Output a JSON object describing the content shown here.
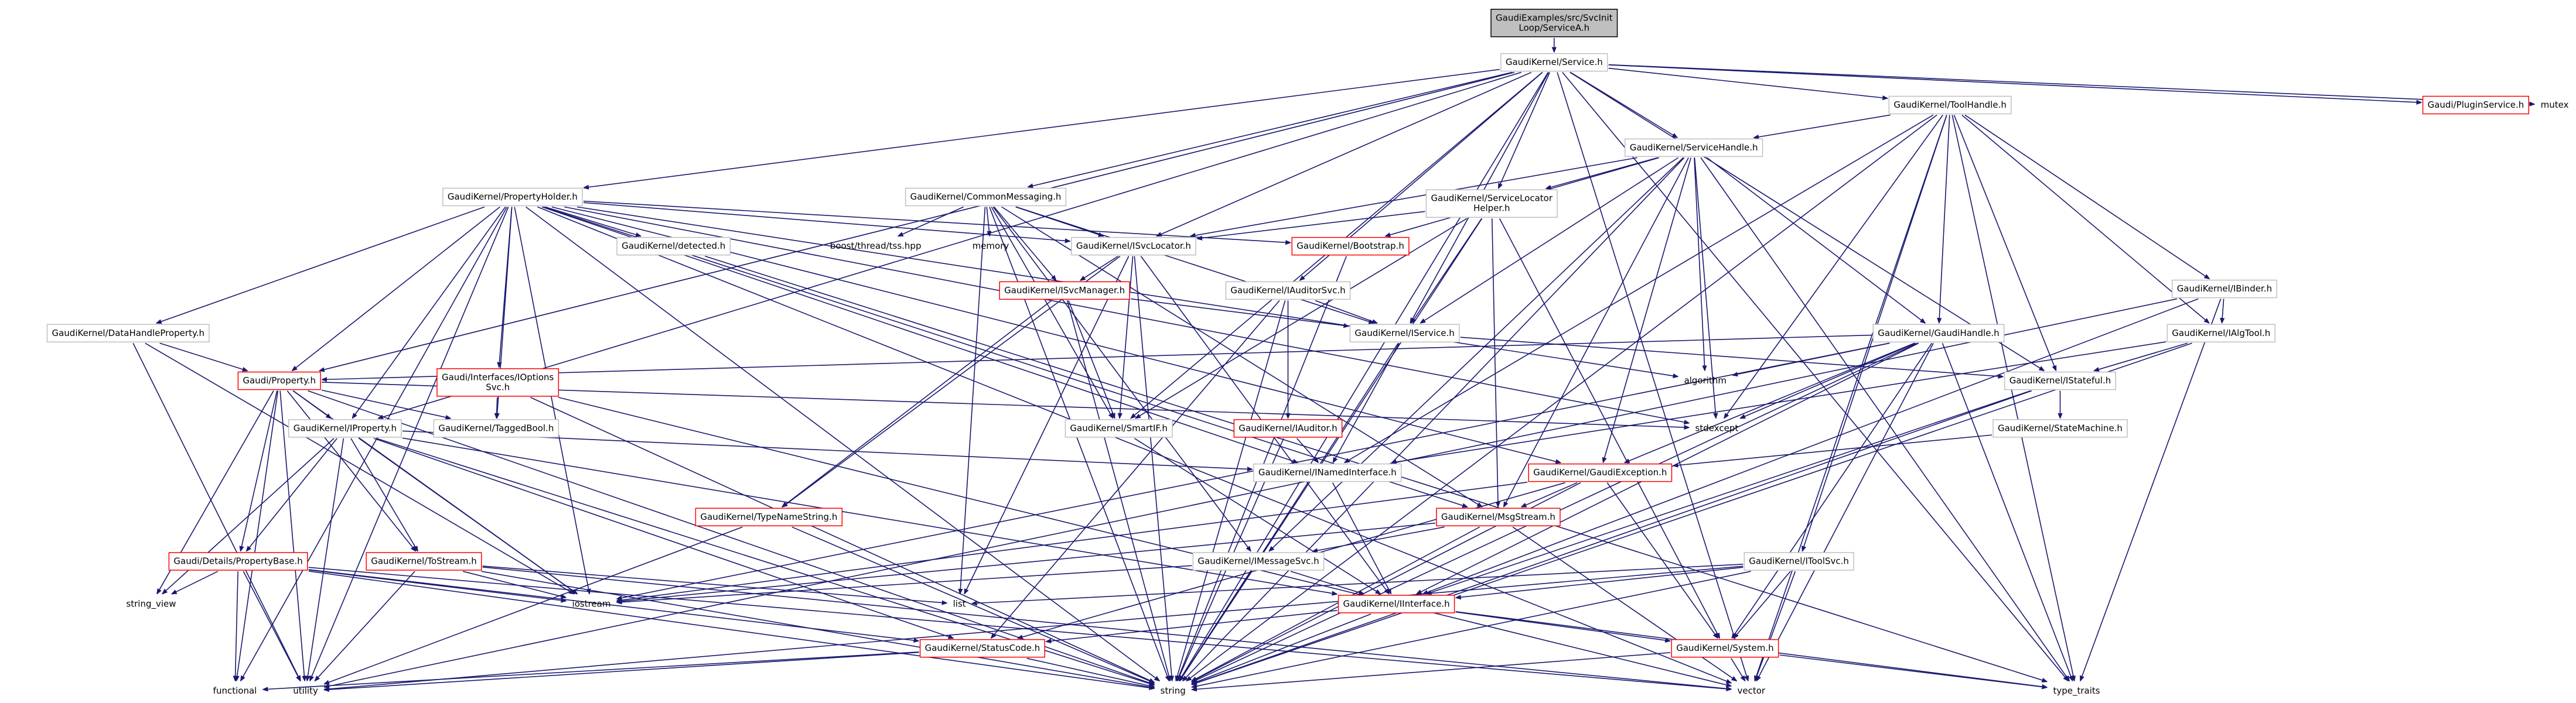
{
  "nodes": [
    {
      "lines": [
        "GaudiExamples/src/SvcInit",
        "Loop/ServiceA.h"
      ]
    },
    {
      "lines": [
        "GaudiKernel/Service.h"
      ]
    },
    {
      "lines": [
        "GaudiKernel/ToolHandle.h"
      ]
    },
    {
      "lines": [
        "Gaudi/PluginService.h"
      ]
    },
    {
      "lines": [
        "mutex"
      ]
    },
    {
      "lines": [
        "GaudiKernel/ServiceHandle.h"
      ]
    },
    {
      "lines": [
        "GaudiKernel/PropertyHolder.h"
      ]
    },
    {
      "lines": [
        "GaudiKernel/CommonMessaging.h"
      ]
    },
    {
      "lines": [
        "GaudiKernel/ServiceLocator",
        "Helper.h"
      ]
    },
    {
      "lines": [
        "GaudiKernel/detected.h"
      ]
    },
    {
      "lines": [
        "boost/thread/tss.hpp"
      ]
    },
    {
      "lines": [
        "memory"
      ]
    },
    {
      "lines": [
        "GaudiKernel/ISvcLocator.h"
      ]
    },
    {
      "lines": [
        "GaudiKernel/Bootstrap.h"
      ]
    },
    {
      "lines": [
        "GaudiKernel/IBinder.h"
      ]
    },
    {
      "lines": [
        "GaudiKernel/DataHandleProperty.h"
      ]
    },
    {
      "lines": [
        "GaudiKernel/ISvcManager.h"
      ]
    },
    {
      "lines": [
        "GaudiKernel/IAuditorSvc.h"
      ]
    },
    {
      "lines": [
        "GaudiKernel/IService.h"
      ]
    },
    {
      "lines": [
        "GaudiKernel/GaudiHandle.h"
      ]
    },
    {
      "lines": [
        "GaudiKernel/IAlgTool.h"
      ]
    },
    {
      "lines": [
        "Gaudi/Property.h"
      ]
    },
    {
      "lines": [
        "Gaudi/Interfaces/IOptions",
        "Svc.h"
      ]
    },
    {
      "lines": [
        "algorithm"
      ]
    },
    {
      "lines": [
        "GaudiKernel/IStateful.h"
      ]
    },
    {
      "lines": [
        "GaudiKernel/IProperty.h"
      ]
    },
    {
      "lines": [
        "GaudiKernel/TaggedBool.h"
      ]
    },
    {
      "lines": [
        "GaudiKernel/SmartIF.h"
      ]
    },
    {
      "lines": [
        "stdexcept"
      ]
    },
    {
      "lines": [
        "GaudiKernel/IAuditor.h"
      ]
    },
    {
      "lines": [
        "GaudiKernel/StateMachine.h"
      ]
    },
    {
      "lines": [
        "GaudiKernel/INamedInterface.h"
      ]
    },
    {
      "lines": [
        "GaudiKernel/GaudiException.h"
      ]
    },
    {
      "lines": [
        "GaudiKernel/TypeNameString.h"
      ]
    },
    {
      "lines": [
        "GaudiKernel/MsgStream.h"
      ]
    },
    {
      "lines": [
        "Gaudi/Details/PropertyBase.h"
      ]
    },
    {
      "lines": [
        "GaudiKernel/ToStream.h"
      ]
    },
    {
      "lines": [
        "GaudiKernel/IMessageSvc.h"
      ]
    },
    {
      "lines": [
        "GaudiKernel/IToolSvc.h"
      ]
    },
    {
      "lines": [
        "string_view"
      ]
    },
    {
      "lines": [
        "iostream"
      ]
    },
    {
      "lines": [
        "list"
      ]
    },
    {
      "lines": [
        "GaudiKernel/IInterface.h"
      ]
    },
    {
      "lines": [
        "GaudiKernel/StatusCode.h"
      ]
    },
    {
      "lines": [
        "GaudiKernel/System.h"
      ]
    },
    {
      "lines": [
        "functional"
      ]
    },
    {
      "lines": [
        "utility"
      ]
    },
    {
      "lines": [
        "string"
      ]
    },
    {
      "lines": [
        "vector"
      ]
    },
    {
      "lines": [
        "type_traits"
      ]
    }
  ]
}
